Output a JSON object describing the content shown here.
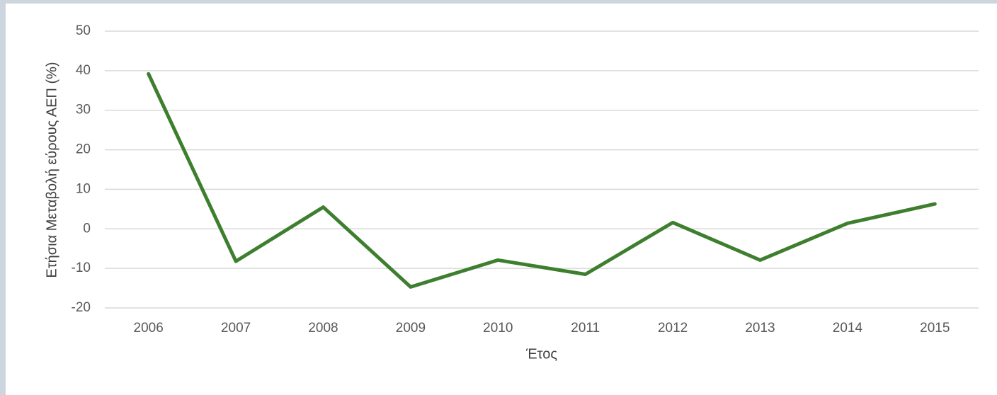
{
  "chart_data": {
    "type": "line",
    "x_label": "Έτος",
    "y_label": "Ετήσια Μεταβολή εύρους ΑΕΠ (%)",
    "categories": [
      "2006",
      "2007",
      "2008",
      "2009",
      "2010",
      "2011",
      "2012",
      "2013",
      "2014",
      "2015"
    ],
    "series": [
      {
        "name": "Ετήσια Μεταβολή",
        "color": "#3d7f2e",
        "values": [
          39.2,
          -8.2,
          5.5,
          -14.7,
          -7.9,
          -11.5,
          1.6,
          -7.9,
          1.4,
          6.3
        ]
      }
    ],
    "ylim": [
      -20,
      50
    ],
    "yticks": [
      -20,
      -10,
      0,
      10,
      20,
      30,
      40,
      50
    ],
    "grid": true
  }
}
